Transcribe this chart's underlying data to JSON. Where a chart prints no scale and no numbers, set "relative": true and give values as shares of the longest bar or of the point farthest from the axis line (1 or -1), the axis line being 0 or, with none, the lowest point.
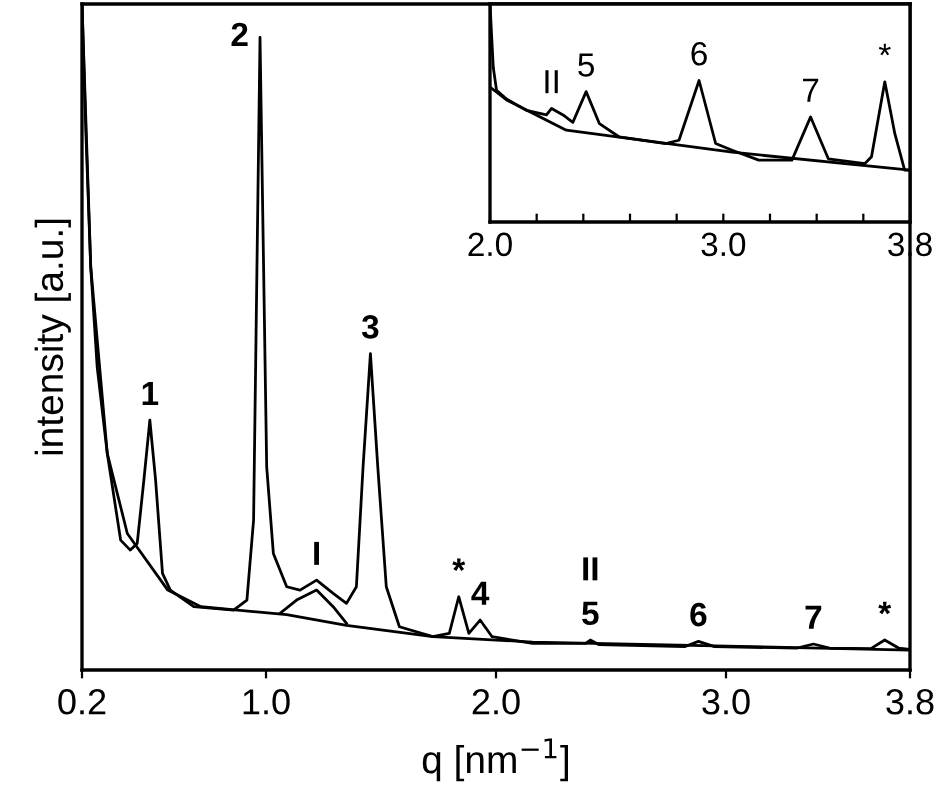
{
  "chart_data": [
    {
      "type": "line",
      "relative": true,
      "xlabel": "q [nm$^{−1}$]",
      "ylabel": "intensity [a.u.]",
      "xlim": [
        0.2,
        3.8
      ],
      "xticks": [
        {
          "value": 0.2,
          "label": "0.2"
        },
        {
          "value": 1,
          "label": "1.0"
        },
        {
          "value": 2,
          "label": "2.0"
        },
        {
          "value": 3,
          "label": "3.0"
        },
        {
          "value": 3.8,
          "label": "3.8"
        }
      ],
      "legend": false,
      "marker": "none",
      "line_style": "solid",
      "series": [
        {
          "color": "#000000",
          "x": [
            0.2,
            0.217,
            0.238,
            0.266,
            0.31,
            0.368,
            0.41,
            0.44,
            0.469,
            0.495,
            0.52,
            0.55,
            0.584,
            0.686,
            0.859,
            0.917,
            0.946,
            0.974,
            1.003,
            1.032,
            1.09,
            1.148,
            1.22,
            1.292,
            1.35,
            1.393,
            1.422,
            1.454,
            1.486,
            1.523,
            1.58,
            1.725,
            1.797,
            1.838,
            1.882,
            1.931,
            1.983,
            2.159,
            2.39,
            2.41,
            2.448,
            2.82,
            2.88,
            2.95,
            3.31,
            3.38,
            3.45,
            3.63,
            3.69,
            3.75,
            3.8
          ],
          "values": [
            1.0,
            0.805,
            0.605,
            0.455,
            0.325,
            0.195,
            0.18,
            0.19,
            0.285,
            0.375,
            0.285,
            0.145,
            0.12,
            0.095,
            0.09,
            0.105,
            0.225,
            0.95,
            0.305,
            0.175,
            0.125,
            0.12,
            0.135,
            0.115,
            0.1,
            0.125,
            0.305,
            0.475,
            0.305,
            0.125,
            0.065,
            0.05,
            0.055,
            0.11,
            0.055,
            0.075,
            0.05,
            0.04,
            0.04,
            0.045,
            0.038,
            0.035,
            0.043,
            0.035,
            0.033,
            0.039,
            0.033,
            0.032,
            0.045,
            0.033,
            0.031
          ]
        },
        {
          "color": "#000000",
          "x": [
            0.2,
            0.238,
            0.31,
            0.397,
            0.573,
            0.717,
            1.09,
            1.35,
            1.725,
            2.159,
            3.8
          ],
          "values": [
            1.0,
            0.605,
            0.325,
            0.205,
            0.12,
            0.095,
            0.083,
            0.067,
            0.05,
            0.042,
            0.03
          ]
        },
        {
          "color": "#000000",
          "x": [
            1.061,
            1.133,
            1.22,
            1.292,
            1.35
          ],
          "values": [
            0.085,
            0.105,
            0.12,
            0.095,
            0.07
          ]
        }
      ],
      "annotations": [
        {
          "text": "1",
          "x": 0.495,
          "y": 0.375
        },
        {
          "text": "2",
          "x": 0.974,
          "y": 0.95
        },
        {
          "text": "I",
          "x": 1.22,
          "y": 0.135
        },
        {
          "text": "3",
          "x": 1.454,
          "y": 0.475
        },
        {
          "text": "*",
          "x": 1.838,
          "y": 0.11
        },
        {
          "text": "4",
          "x": 1.931,
          "y": 0.075
        },
        {
          "text": "5",
          "x": 2.41,
          "y": 0.045
        },
        {
          "text": "II",
          "x": 2.41,
          "y": 0.045
        },
        {
          "text": "6",
          "x": 2.88,
          "y": 0.043
        },
        {
          "text": "7",
          "x": 3.38,
          "y": 0.039
        },
        {
          "text": "*",
          "x": 3.69,
          "y": 0.045
        }
      ]
    },
    {
      "type": "line",
      "relative": true,
      "xlim": [
        2.0,
        3.8
      ],
      "xticks": [
        {
          "value": 2,
          "label": "2.0"
        },
        {
          "value": 2.2,
          "label": null
        },
        {
          "value": 2.4,
          "label": null
        },
        {
          "value": 2.6,
          "label": null
        },
        {
          "value": 2.8,
          "label": null
        },
        {
          "value": 3,
          "label": "3.0"
        },
        {
          "value": 3.2,
          "label": null
        },
        {
          "value": 3.4,
          "label": null
        },
        {
          "value": 3.6,
          "label": null
        },
        {
          "value": 3.8,
          "label": "3.8"
        }
      ],
      "legend": false,
      "marker": "none",
      "line_style": "solid",
      "series": [
        {
          "color": "#000000",
          "x": [
            2.0,
            2.014,
            2.028,
            2.071,
            2.156,
            2.242,
            2.264,
            2.313,
            2.355,
            2.412,
            2.469,
            2.554,
            2.753,
            2.81,
            2.896,
            2.967,
            3.038,
            3.152,
            3.294,
            3.374,
            3.45,
            3.607,
            3.635,
            3.692,
            3.735,
            3.777,
            3.8
          ],
          "values": [
            1.0,
            0.71,
            0.604,
            0.564,
            0.512,
            0.491,
            0.521,
            0.491,
            0.457,
            0.598,
            0.451,
            0.39,
            0.36,
            0.375,
            0.649,
            0.36,
            0.329,
            0.284,
            0.284,
            0.482,
            0.29,
            0.268,
            0.299,
            0.643,
            0.405,
            0.238,
            0.238
          ]
        },
        {
          "color": "#000000",
          "x": [
            2.0,
            2.071,
            2.327,
            3.038,
            3.8
          ],
          "values": [
            0.619,
            0.56,
            0.421,
            0.32,
            0.238
          ]
        }
      ],
      "annotations": [
        {
          "text": "II",
          "x": 2.264,
          "y": 0.521
        },
        {
          "text": "5",
          "x": 2.412,
          "y": 0.598
        },
        {
          "text": "6",
          "x": 2.896,
          "y": 0.649
        },
        {
          "text": "7",
          "x": 3.374,
          "y": 0.482
        },
        {
          "text": "*",
          "x": 3.692,
          "y": 0.643
        }
      ]
    }
  ]
}
